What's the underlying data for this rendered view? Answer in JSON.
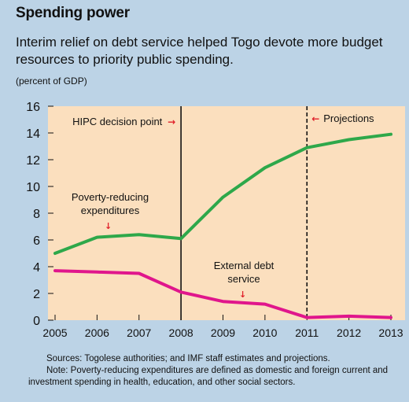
{
  "header": {
    "title": "Spending power",
    "subtitle": "Interim relief on debt service helped Togo devote more budget resources to priority public spending.",
    "unit": "(percent of GDP)"
  },
  "notes": {
    "sources": "Sources: Togolese authorities; and IMF staff estimates and projections.",
    "note": "Note: Poverty-reducing expenditures are defined as domestic and foreign current and investment spending in health, education, and other social sectors."
  },
  "colors": {
    "background": "#bcd3e6",
    "plot_area": "#fbdfbe",
    "poverty_series": "#2ea84a",
    "debt_series": "#e0168c",
    "arrow": "#e0202a",
    "axis": "#111111"
  },
  "chart_data": {
    "type": "line",
    "x": [
      2005,
      2006,
      2007,
      2008,
      2009,
      2010,
      2011,
      2012,
      2013
    ],
    "ylim": [
      0,
      16
    ],
    "yticks": [
      0,
      2,
      4,
      6,
      8,
      10,
      12,
      14,
      16
    ],
    "grid": false,
    "series": [
      {
        "name": "Poverty-reducing expenditures",
        "values": [
          5.0,
          6.2,
          6.4,
          6.1,
          9.2,
          11.4,
          12.9,
          13.5,
          13.9
        ]
      },
      {
        "name": "External debt service",
        "values": [
          3.7,
          3.6,
          3.5,
          2.1,
          1.4,
          1.2,
          0.2,
          0.3,
          0.2
        ]
      }
    ],
    "markers": [
      {
        "x": 2008,
        "style": "solid",
        "label": "HIPC decision point",
        "arrow": "→"
      },
      {
        "x": 2011,
        "style": "dashed",
        "label": "Projections",
        "arrow": "←"
      }
    ],
    "annotations": [
      {
        "series": 0,
        "label_lines": [
          "Poverty-reducing",
          "expenditures"
        ],
        "arrow": "↓"
      },
      {
        "series": 1,
        "label_lines": [
          "External debt",
          "service"
        ],
        "arrow": "↓"
      }
    ]
  }
}
